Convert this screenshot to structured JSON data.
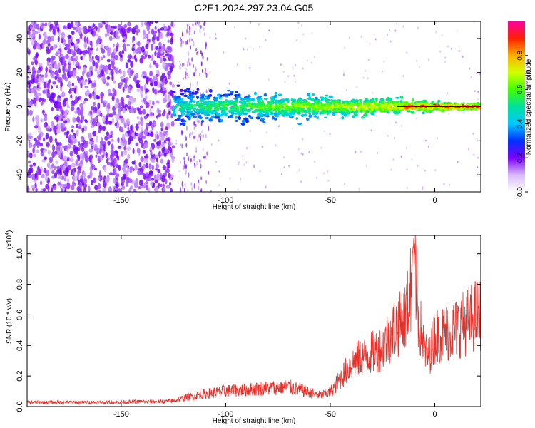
{
  "title": "C2E1.2024.297.23.04.G05",
  "chart_data": [
    {
      "type": "heatmap",
      "xlabel": "Height of straight line (km)",
      "ylabel": "Frequency (Hz)",
      "xlim": [
        -195,
        22
      ],
      "ylim": [
        -50,
        50
      ],
      "xticks": [
        "-150",
        "-100",
        "-50",
        "0"
      ],
      "xtick_values": [
        -150,
        -100,
        -50,
        0
      ],
      "yticks": [
        "40",
        "20",
        "0",
        "-20",
        "-40"
      ],
      "ytick_values": [
        40,
        20,
        0,
        -20,
        -40
      ],
      "band_center_hz": 0,
      "noise_region_km": [
        -195,
        -125
      ],
      "band_onset_km": -125,
      "colorbar": {
        "label": "Normalized spectral amplitude",
        "ticks": [
          "0.0",
          "0.2",
          "0.4",
          "0.6",
          "0.8"
        ],
        "tick_values": [
          0.0,
          0.2,
          0.4,
          0.6,
          0.8
        ],
        "range": [
          0,
          1
        ]
      }
    },
    {
      "type": "line",
      "xlabel": "Height of straight line (km)",
      "ylabel": "SNR (10 * v/v)",
      "scale_label": "(x10",
      "scale_exp": "4",
      "scale_close": ")",
      "xlim": [
        -195,
        22
      ],
      "ylim": [
        0,
        1.12
      ],
      "xticks": [
        "-150",
        "-100",
        "-50",
        "0"
      ],
      "xtick_values": [
        -150,
        -100,
        -50,
        0
      ],
      "yticks": [
        "0.0",
        "0.2",
        "0.4",
        "0.6",
        "0.8",
        "1.0"
      ],
      "ytick_values": [
        0.0,
        0.2,
        0.4,
        0.6,
        0.8,
        1.0
      ],
      "color": "#e8302a",
      "series": [
        {
          "x": [
            -195,
            -180,
            -160,
            -140,
            -130,
            -125,
            -120,
            -110,
            -100,
            -90,
            -80,
            -70,
            -60,
            -55,
            -50,
            -45,
            -40,
            -35,
            -30,
            -25,
            -20,
            -15,
            -12,
            -10,
            -8,
            -5,
            -3,
            0,
            5,
            10,
            15,
            20,
            22
          ],
          "y": [
            0.03,
            0.03,
            0.03,
            0.035,
            0.035,
            0.04,
            0.06,
            0.09,
            0.11,
            0.12,
            0.13,
            0.14,
            0.1,
            0.08,
            0.1,
            0.2,
            0.3,
            0.35,
            0.38,
            0.42,
            0.55,
            0.6,
            0.75,
            1.12,
            0.65,
            0.4,
            0.35,
            0.5,
            0.52,
            0.55,
            0.6,
            0.65,
            0.66
          ]
        }
      ]
    }
  ]
}
